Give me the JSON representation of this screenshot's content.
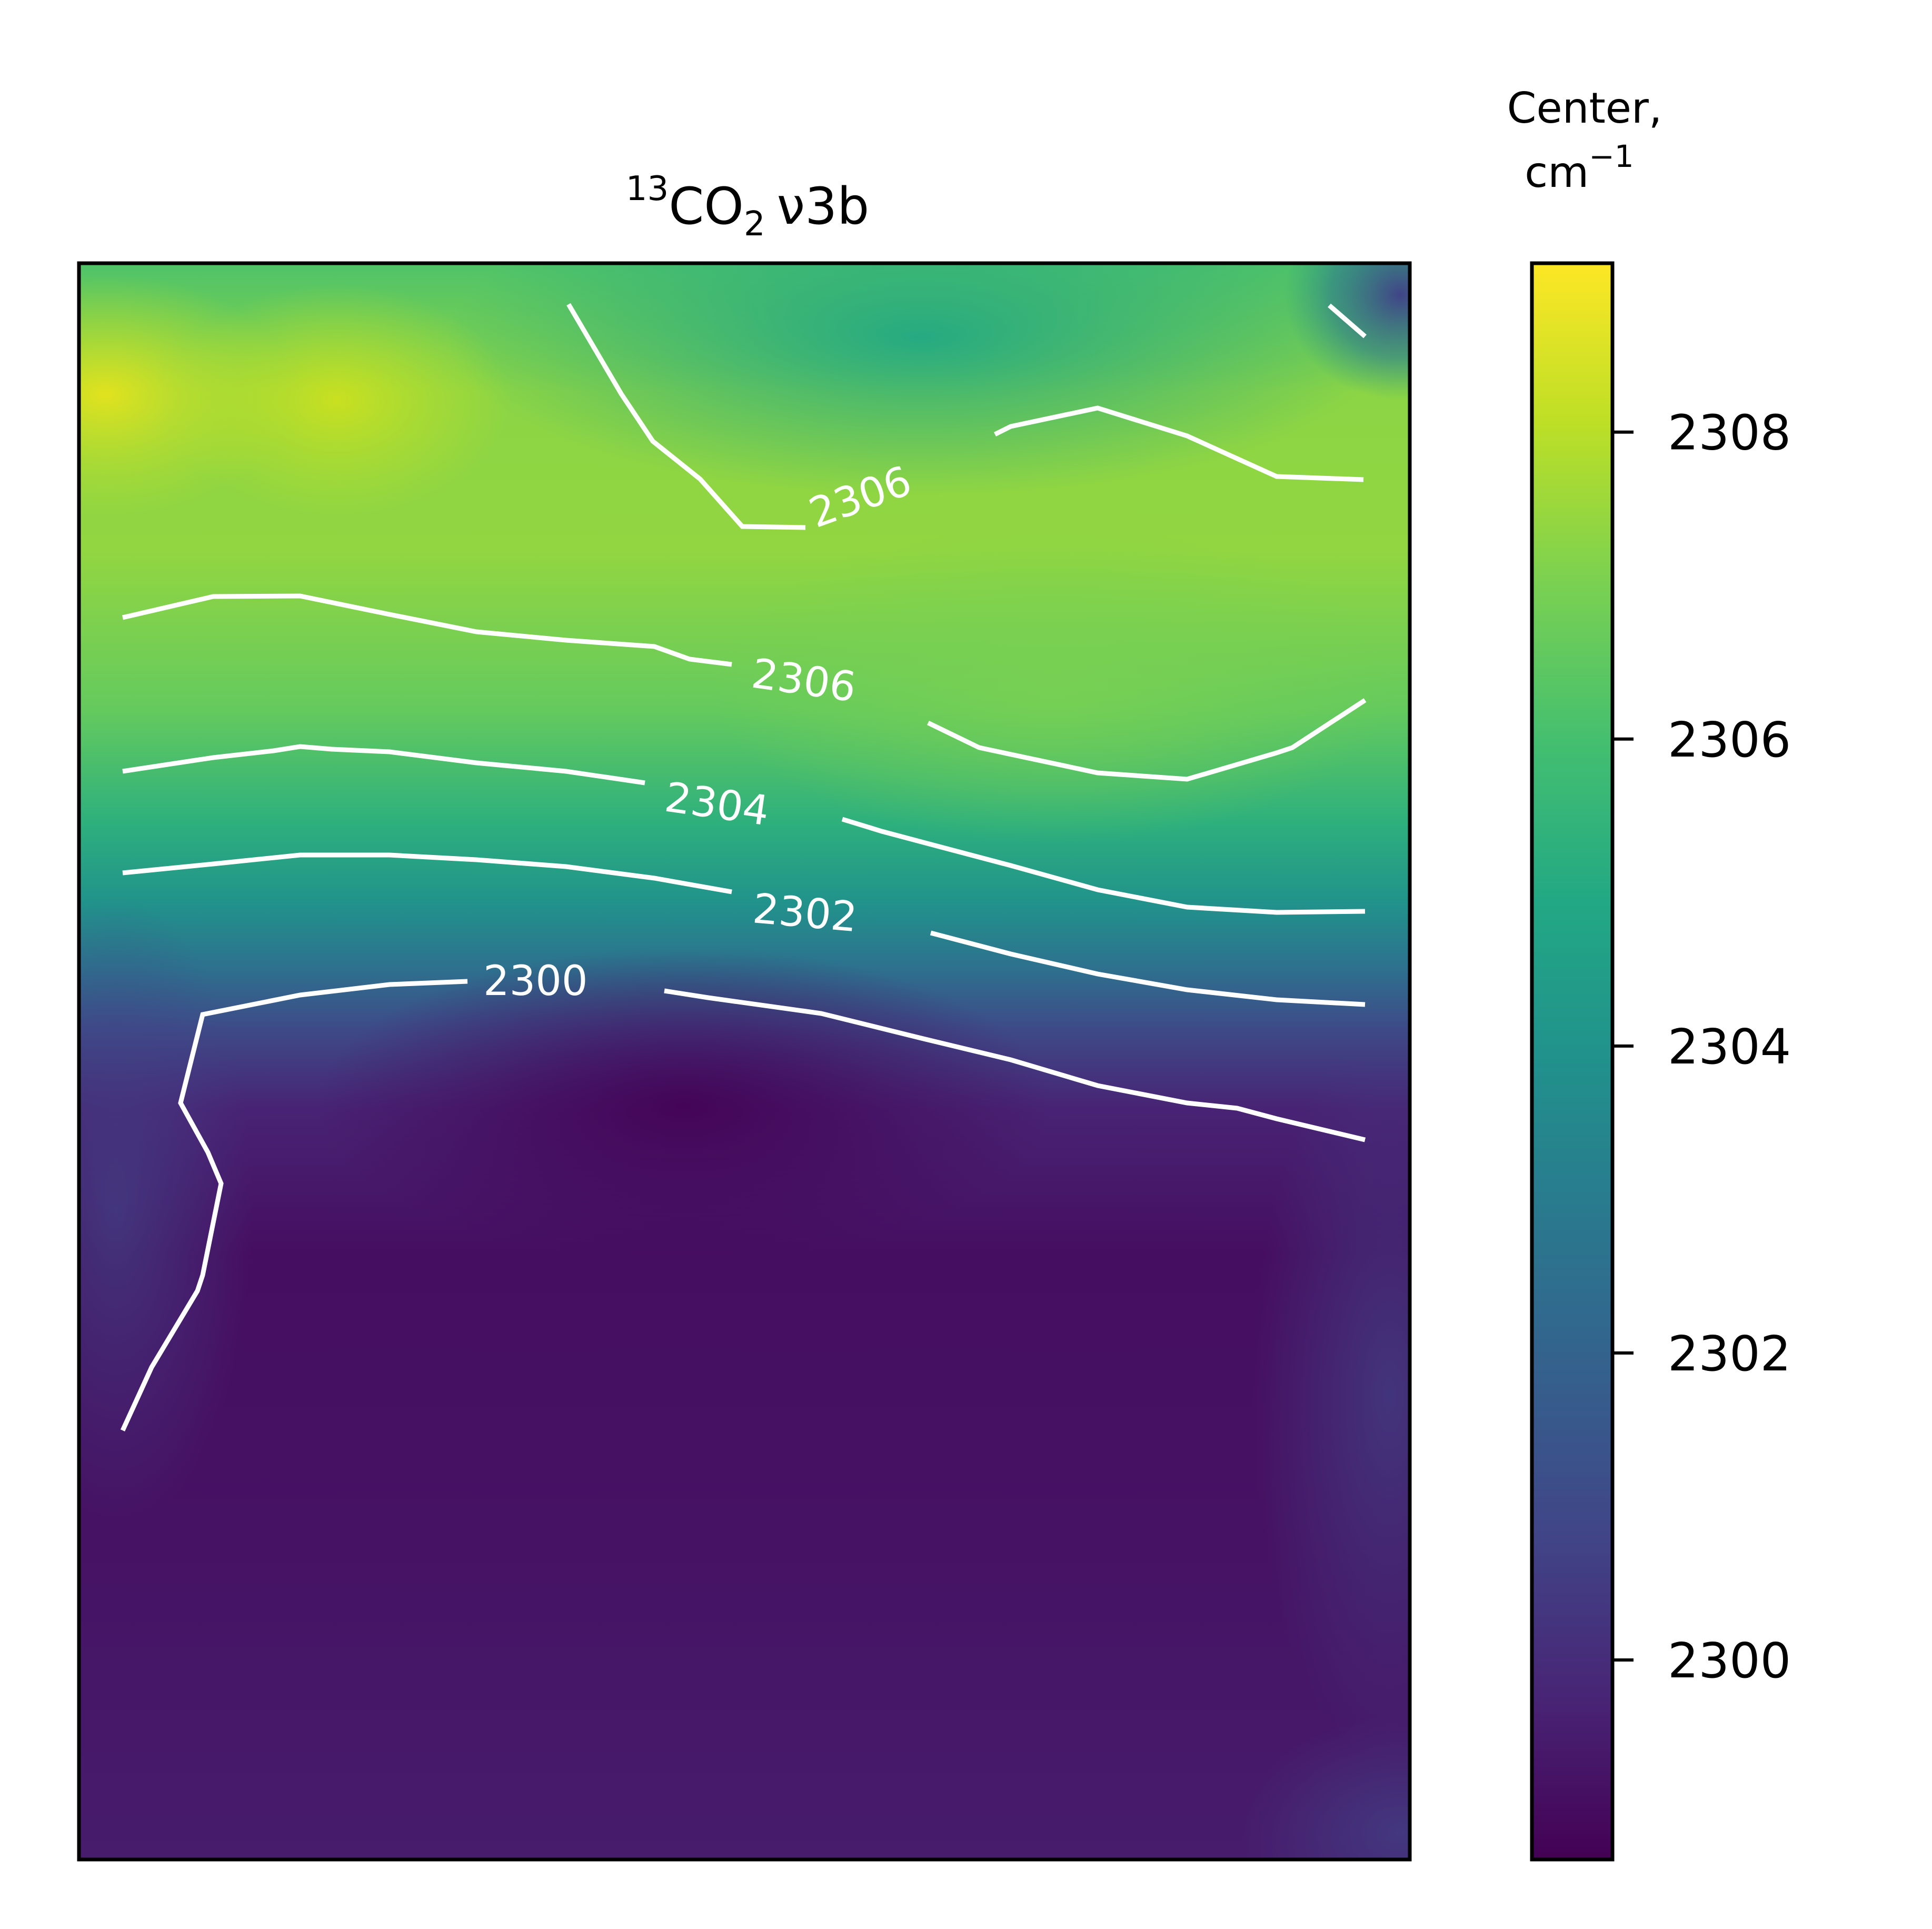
{
  "chart_data": {
    "type": "heatmap",
    "title": {
      "superscript": "13",
      "molecule": "CO",
      "subscript": "2",
      "band": "ν3b"
    },
    "colormap": "viridis",
    "colormap_stops": [
      "#440154",
      "#482475",
      "#414487",
      "#355f8d",
      "#2a788e",
      "#21918c",
      "#22a884",
      "#44bf70",
      "#7ad151",
      "#bddf26",
      "#fde725"
    ],
    "colorbar": {
      "label_line1": "Center,",
      "label_line2_base": "cm",
      "label_line2_exp": "−1",
      "range": [
        2298.7,
        2309.1
      ],
      "ticks": [
        2300,
        2302,
        2304,
        2306,
        2308
      ],
      "tick_labels": [
        "2300",
        "2302",
        "2304",
        "2306",
        "2308"
      ]
    },
    "xlabel": "",
    "ylabel": "",
    "axes_ticks_visible": false,
    "contour_levels": [
      2300,
      2302,
      2304,
      2306
    ],
    "contour_labels": [
      {
        "text": "2306",
        "level": 2306,
        "instance": "upper"
      },
      {
        "text": "2306",
        "level": 2306,
        "instance": "lower"
      },
      {
        "text": "2304",
        "level": 2304
      },
      {
        "text": "2302",
        "level": 2302
      },
      {
        "text": "2300",
        "level": 2300
      }
    ],
    "field_summary": {
      "top_left_max": 2308.9,
      "upper_region_typical": 2306.5,
      "top_right_corner_min": 2301.5,
      "lower_region_typical": 2299.5,
      "lower_region_min": 2299.0
    }
  }
}
